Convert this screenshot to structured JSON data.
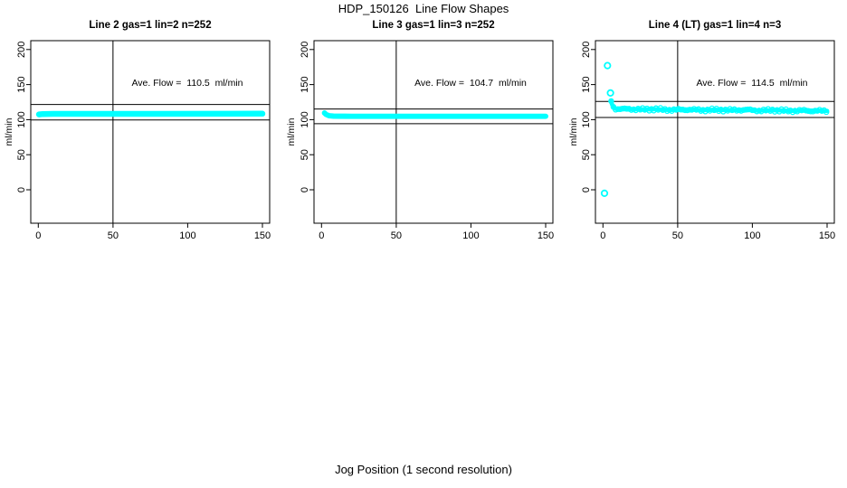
{
  "chart_data": {
    "type": "scatter",
    "title": "HDP_150126  Line Flow Shapes",
    "xlabel": "Jog Position (1 second resolution)",
    "ylabel": "ml/min",
    "point_color": "#00ffff",
    "axis_color": "#000000",
    "background_color": "#ffffff",
    "xlim": [
      0,
      150
    ],
    "ylim": [
      -47,
      213
    ],
    "x_ticks": [
      0,
      50,
      100,
      150
    ],
    "y_ticks": [
      0,
      50,
      100,
      150,
      200
    ],
    "grid": false,
    "legend": "none",
    "panels": [
      {
        "title": "Line 2 gas=1 lin=2 n=252",
        "line": 2,
        "gas": 1,
        "lin": 2,
        "n": 252,
        "ave_flow": 110.5,
        "annotation": "Ave. Flow =  110.5  ml/min",
        "ref_vline_x": 50,
        "ref_hlines_y": [
          121.6,
          99.5
        ],
        "band_halfwidth": 4.2,
        "texture": false,
        "band_profile": [
          [
            0.5,
            107.5
          ],
          [
            3,
            108
          ],
          [
            10,
            108.2
          ],
          [
            75,
            108.3
          ],
          [
            150,
            108.5
          ]
        ],
        "outliers": []
      },
      {
        "title": "Line 3 gas=1 lin=3 n=252",
        "line": 3,
        "gas": 1,
        "lin": 3,
        "n": 252,
        "ave_flow": 104.7,
        "annotation": "Ave. Flow =  104.7  ml/min",
        "ref_vline_x": 50,
        "ref_hlines_y": [
          115.2,
          94.2
        ],
        "band_halfwidth": 3.8,
        "texture": false,
        "band_profile": [
          [
            2,
            109.5
          ],
          [
            3,
            107.5
          ],
          [
            5,
            105.5
          ],
          [
            8,
            105
          ],
          [
            20,
            104.8
          ],
          [
            80,
            104.8
          ],
          [
            150,
            104.8
          ]
        ],
        "outliers": []
      },
      {
        "title": "Line 4 (LT) gas=1 lin=4 n=3",
        "line": 4,
        "line_note": "LT",
        "gas": 1,
        "lin": 4,
        "n": 3,
        "ave_flow": 114.5,
        "annotation": "Ave. Flow =  114.5  ml/min",
        "ref_vline_x": 50,
        "ref_hlines_y": [
          126.0,
          103.1
        ],
        "band_halfwidth": 3.0,
        "texture": true,
        "band_profile": [
          [
            5.5,
            127
          ],
          [
            6,
            122
          ],
          [
            7,
            118
          ],
          [
            8,
            115.8
          ],
          [
            10,
            115.5
          ],
          [
            14,
            115
          ],
          [
            20,
            115
          ],
          [
            28,
            114.5
          ],
          [
            35,
            115
          ],
          [
            42,
            114
          ],
          [
            50,
            114
          ],
          [
            58,
            114.5
          ],
          [
            65,
            113.5
          ],
          [
            75,
            114
          ],
          [
            85,
            113.5
          ],
          [
            95,
            114
          ],
          [
            105,
            113
          ],
          [
            115,
            113.5
          ],
          [
            125,
            112.5
          ],
          [
            135,
            113
          ],
          [
            143,
            112.5
          ],
          [
            150,
            112.5
          ]
        ],
        "outliers": [
          [
            3,
            177
          ],
          [
            5,
            138
          ],
          [
            1,
            -5
          ]
        ]
      }
    ]
  }
}
